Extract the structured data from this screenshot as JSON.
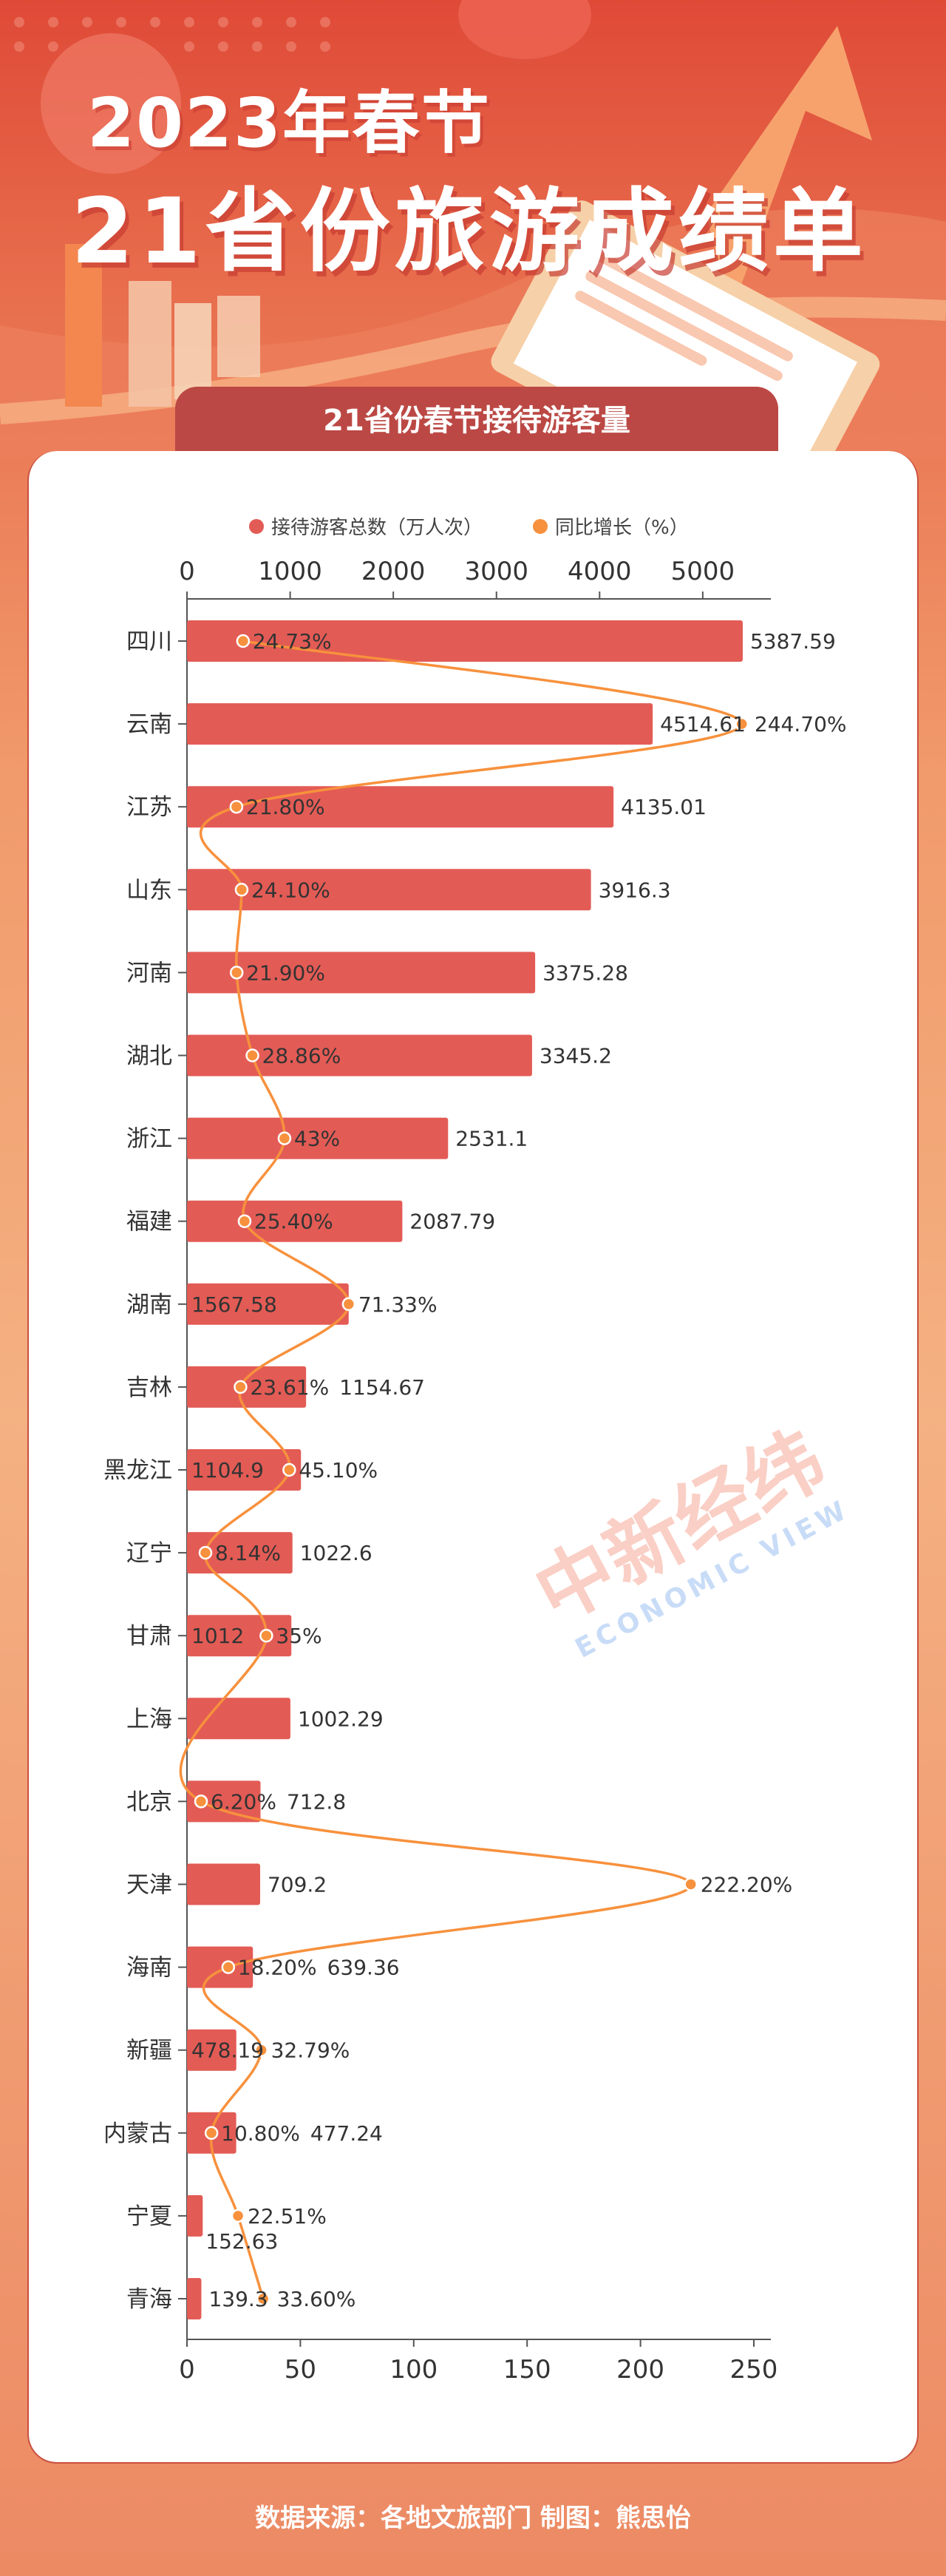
{
  "header": {
    "title_line1": "2023年春节",
    "title_line2": "21省份旅游成绩单"
  },
  "section_title": "21省份春节接待游客量",
  "watermark": {
    "cn": "中新经纬",
    "en": "ECONOMIC VIEW"
  },
  "footer": "数据来源：各地文旅部门  制图：熊思怡",
  "colors": {
    "bar": "#e35b55",
    "line": "#f7913d",
    "band": "#bb4844"
  },
  "chart_data": {
    "type": "bar+line",
    "orientation": "horizontal",
    "legend_position": "top",
    "categories": [
      "四川",
      "云南",
      "江苏",
      "山东",
      "河南",
      "湖北",
      "浙江",
      "福建",
      "湖南",
      "吉林",
      "黑龙江",
      "辽宁",
      "甘肃",
      "上海",
      "北京",
      "天津",
      "海南",
      "新疆",
      "内蒙古",
      "宁夏",
      "青海"
    ],
    "series": [
      {
        "name": "接待游客总数（万人次）",
        "type": "bar",
        "axis": "top",
        "values": [
          5387.59,
          4514.61,
          4135.01,
          3916.3,
          3375.28,
          3345.2,
          2531.1,
          2087.79,
          1567.58,
          1154.67,
          1104.9,
          1022.6,
          1012,
          1002.29,
          712.8,
          709.2,
          639.36,
          478.19,
          477.24,
          152.63,
          139.3
        ]
      },
      {
        "name": "同比增长（%）",
        "type": "line",
        "axis": "bottom",
        "values": [
          24.73,
          244.7,
          21.8,
          24.1,
          21.9,
          28.86,
          43,
          25.4,
          71.33,
          23.61,
          45.1,
          8.14,
          35,
          null,
          6.2,
          222.2,
          18.2,
          32.79,
          10.8,
          22.51,
          33.6
        ],
        "labels": [
          "24.73%",
          "244.70%",
          "21.80%",
          "24.10%",
          "21.90%",
          "28.86%",
          "43%",
          "25.40%",
          "71.33%",
          "23.61%",
          "45.10%",
          "8.14%",
          "35%",
          "",
          "6.20%",
          "222.20%",
          "18.20%",
          "32.79%",
          "10.80%",
          "22.51%",
          "33.60%"
        ]
      }
    ],
    "top_axis": {
      "ticks": [
        0,
        1000,
        2000,
        3000,
        4000,
        5000
      ],
      "range": [
        0,
        5660
      ]
    },
    "bottom_axis": {
      "ticks": [
        0,
        50,
        100,
        150,
        200,
        250
      ],
      "range": [
        0,
        257.5
      ]
    },
    "grid": false
  }
}
